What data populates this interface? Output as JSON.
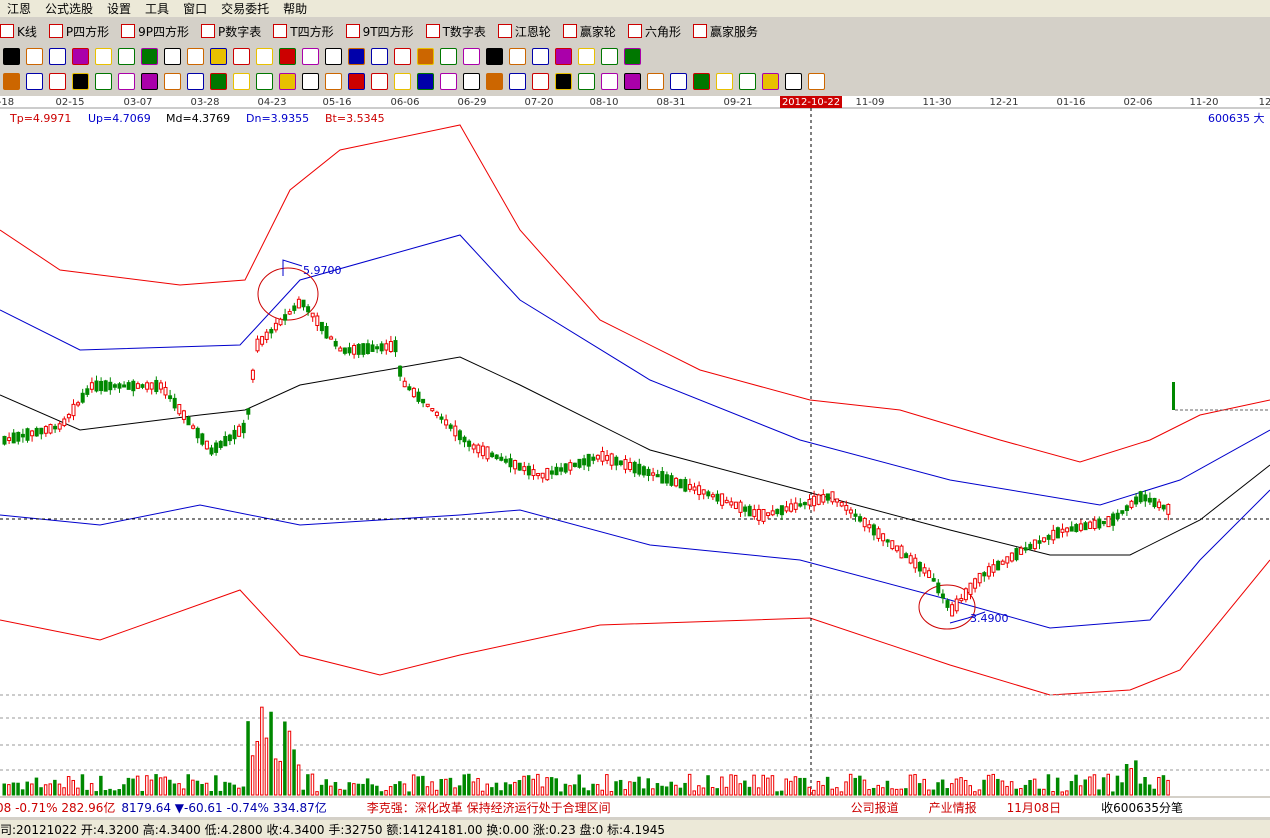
{
  "menu": {
    "items": [
      "江恩",
      "公式选股",
      "设置",
      "工具",
      "窗口",
      "交易委托",
      "帮助"
    ]
  },
  "toolbar": {
    "items": [
      "K线",
      "P四方形",
      "9P四方形",
      "P数字表",
      "T四方形",
      "9T四方形",
      "T数字表",
      "江恩轮",
      "赢家轮",
      "六角形",
      "赢家服务"
    ]
  },
  "date_axis": {
    "labels": [
      "-18",
      "02-15",
      "03-07",
      "03-28",
      "04-23",
      "05-16",
      "06-06",
      "06-29",
      "07-20",
      "08-10",
      "08-31",
      "09-21",
      "2012-10-22",
      "11-09",
      "11-30",
      "12-21",
      "01-16",
      "02-06",
      "11-20",
      "12"
    ]
  },
  "indicator": {
    "items": [
      "Tp=4.9971",
      "Up=4.7069",
      "Md=4.3769",
      "Dn=3.9355",
      "Bt=3.5345"
    ],
    "code": "600635 大"
  },
  "annotations": [
    "5.9700",
    "3.4900"
  ],
  "status": {
    "items": [
      "08 -0.71% 282.96亿",
      "8179.64 ▼-60.61 -0.74% 334.87亿",
      "李克强：深化改革 保持经济运行处于合理区间",
      "公司报道",
      "产业情报",
      "11月08日",
      "收600635分笔"
    ]
  },
  "info_bar": {
    "text": "司:20121022 开:4.3200 高:4.3400 低:4.2800 收:4.3400 手:32750 额:14124181.00 换:0.00 涨:0.23 盘:0 标:4.1945"
  }
}
